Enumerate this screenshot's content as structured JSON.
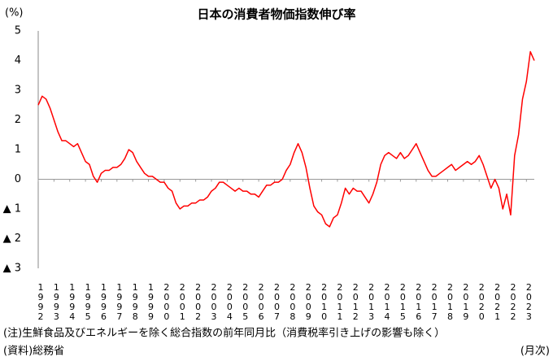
{
  "chart_data": {
    "type": "line",
    "title": "日本の消費者物価指数伸び率",
    "y_unit": "(%)",
    "note": "(注)生鮮食品及びエネルギーを除く総合指数の前年同月比（消費税率引き上げの影響も除く）",
    "source": "(資料)総務省",
    "frequency": "(月次)",
    "color": "#ff0000",
    "xlim": [
      1992,
      2023.5
    ],
    "xticks": [
      1992,
      1993,
      1994,
      1995,
      1996,
      1997,
      1998,
      1999,
      2000,
      2001,
      2002,
      2003,
      2004,
      2005,
      2006,
      2007,
      2008,
      2009,
      2010,
      2011,
      2012,
      2013,
      2014,
      2015,
      2016,
      2017,
      2018,
      2019,
      2020,
      2021,
      2022,
      2023
    ],
    "ylim": [
      -3,
      5
    ],
    "yticks": [
      5,
      4,
      3,
      2,
      1,
      0,
      {
        "value": -1,
        "label": "▲ 1"
      },
      {
        "value": -2,
        "label": "▲ 2"
      },
      {
        "value": -3,
        "label": "▲ 3"
      }
    ],
    "x": [
      1992,
      1992.25,
      1992.5,
      1992.75,
      1993,
      1993.25,
      1993.5,
      1993.75,
      1994,
      1994.25,
      1994.5,
      1994.75,
      1995,
      1995.25,
      1995.5,
      1995.75,
      1996,
      1996.25,
      1996.5,
      1996.75,
      1997,
      1997.25,
      1997.5,
      1997.75,
      1998,
      1998.25,
      1998.5,
      1998.75,
      1999,
      1999.25,
      1999.5,
      1999.75,
      2000,
      2000.25,
      2000.5,
      2000.75,
      2001,
      2001.25,
      2001.5,
      2001.75,
      2002,
      2002.25,
      2002.5,
      2002.75,
      2003,
      2003.25,
      2003.5,
      2003.75,
      2004,
      2004.25,
      2004.5,
      2004.75,
      2005,
      2005.25,
      2005.5,
      2005.75,
      2006,
      2006.25,
      2006.5,
      2006.75,
      2007,
      2007.25,
      2007.5,
      2007.75,
      2008,
      2008.25,
      2008.5,
      2008.75,
      2009,
      2009.25,
      2009.5,
      2009.75,
      2010,
      2010.25,
      2010.5,
      2010.75,
      2011,
      2011.25,
      2011.5,
      2011.75,
      2012,
      2012.25,
      2012.5,
      2012.75,
      2013,
      2013.25,
      2013.5,
      2013.75,
      2014,
      2014.25,
      2014.5,
      2014.75,
      2015,
      2015.25,
      2015.5,
      2015.75,
      2016,
      2016.25,
      2016.5,
      2016.75,
      2017,
      2017.25,
      2017.5,
      2017.75,
      2018,
      2018.25,
      2018.5,
      2018.75,
      2019,
      2019.25,
      2019.5,
      2019.75,
      2020,
      2020.25,
      2020.5,
      2020.75,
      2021,
      2021.25,
      2021.5,
      2021.75,
      2022,
      2022.25,
      2022.5,
      2022.75,
      2023,
      2023.25,
      2023.5
    ],
    "values": [
      2.5,
      2.8,
      2.7,
      2.4,
      2.0,
      1.6,
      1.3,
      1.3,
      1.2,
      1.1,
      1.2,
      0.9,
      0.6,
      0.5,
      0.1,
      -0.1,
      0.2,
      0.3,
      0.3,
      0.4,
      0.4,
      0.5,
      0.7,
      1.0,
      0.9,
      0.6,
      0.4,
      0.2,
      0.1,
      0.1,
      0.0,
      -0.1,
      -0.1,
      -0.3,
      -0.4,
      -0.8,
      -1.0,
      -0.9,
      -0.9,
      -0.8,
      -0.8,
      -0.7,
      -0.7,
      -0.6,
      -0.4,
      -0.3,
      -0.1,
      -0.1,
      -0.2,
      -0.3,
      -0.4,
      -0.3,
      -0.4,
      -0.4,
      -0.5,
      -0.5,
      -0.6,
      -0.4,
      -0.2,
      -0.2,
      -0.1,
      -0.1,
      0.0,
      0.3,
      0.5,
      0.9,
      1.2,
      0.9,
      0.4,
      -0.3,
      -0.9,
      -1.1,
      -1.2,
      -1.5,
      -1.6,
      -1.3,
      -1.2,
      -0.8,
      -0.3,
      -0.5,
      -0.3,
      -0.4,
      -0.4,
      -0.6,
      -0.8,
      -0.5,
      -0.1,
      0.5,
      0.8,
      0.9,
      0.8,
      0.7,
      0.9,
      0.7,
      0.8,
      1.0,
      1.2,
      0.9,
      0.6,
      0.3,
      0.1,
      0.1,
      0.2,
      0.3,
      0.4,
      0.5,
      0.3,
      0.4,
      0.5,
      0.6,
      0.5,
      0.6,
      0.8,
      0.5,
      0.1,
      -0.3,
      0.0,
      -0.3,
      -1.0,
      -0.5,
      -1.2,
      0.8,
      1.5,
      2.7,
      3.3,
      4.3,
      4.0
    ]
  }
}
